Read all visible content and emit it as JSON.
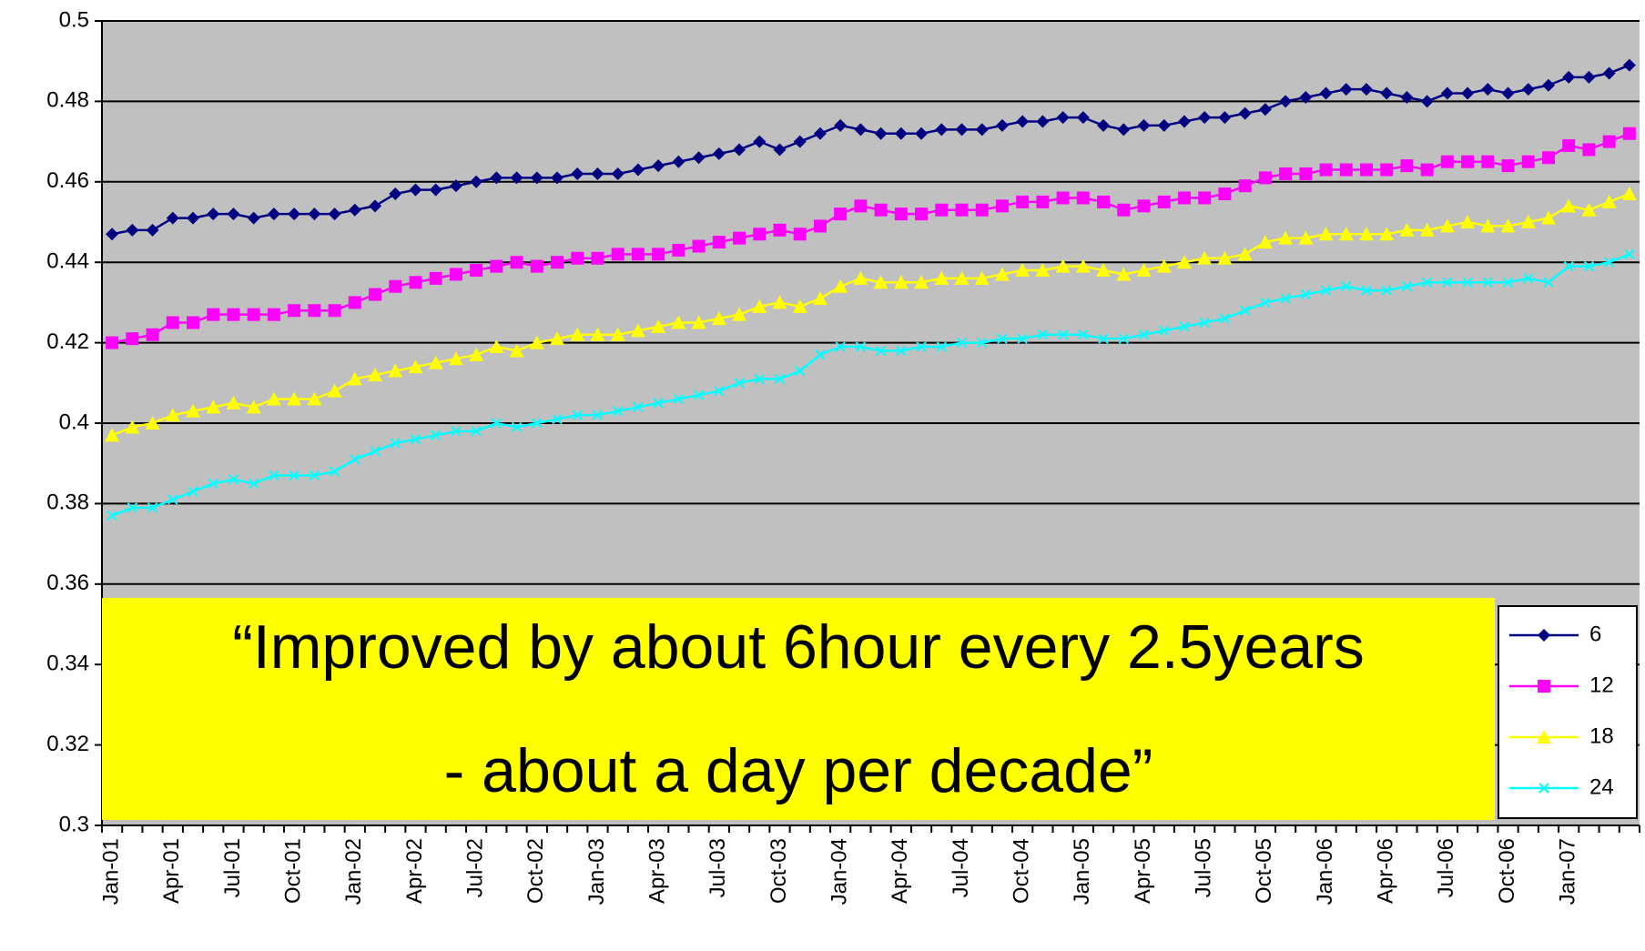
{
  "chart_data": {
    "type": "line",
    "categories": [
      "Jan-01",
      null,
      null,
      "Apr-01",
      null,
      null,
      "Jul-01",
      null,
      null,
      "Oct-01",
      null,
      null,
      "Jan-02",
      null,
      null,
      "Apr-02",
      null,
      null,
      "Jul-02",
      null,
      null,
      "Oct-02",
      null,
      null,
      "Jan-03",
      null,
      null,
      "Apr-03",
      null,
      null,
      "Jul-03",
      null,
      null,
      "Oct-03",
      null,
      null,
      "Jan-04",
      null,
      null,
      "Apr-04",
      null,
      null,
      "Jul-04",
      null,
      null,
      "Oct-04",
      null,
      null,
      "Jan-05",
      null,
      null,
      "Apr-05",
      null,
      null,
      "Jul-05",
      null,
      null,
      "Oct-05",
      null,
      null,
      "Jan-06",
      null,
      null,
      "Apr-06",
      null,
      null,
      "Jul-06",
      null,
      null,
      "Oct-06",
      null,
      null,
      "Jan-07",
      null,
      null,
      null
    ],
    "series": [
      {
        "name": "6",
        "color": "#000080",
        "marker": "diamond",
        "values": [
          0.447,
          0.448,
          0.448,
          0.451,
          0.451,
          0.452,
          0.452,
          0.451,
          0.452,
          0.452,
          0.452,
          0.452,
          0.453,
          0.454,
          0.457,
          0.458,
          0.458,
          0.459,
          0.46,
          0.461,
          0.461,
          0.461,
          0.461,
          0.462,
          0.462,
          0.462,
          0.463,
          0.464,
          0.465,
          0.466,
          0.467,
          0.468,
          0.47,
          0.468,
          0.47,
          0.472,
          0.474,
          0.473,
          0.472,
          0.472,
          0.472,
          0.473,
          0.473,
          0.473,
          0.474,
          0.475,
          0.475,
          0.476,
          0.476,
          0.474,
          0.473,
          0.474,
          0.474,
          0.475,
          0.476,
          0.476,
          0.477,
          0.478,
          0.48,
          0.481,
          0.482,
          0.483,
          0.483,
          0.482,
          0.481,
          0.48,
          0.482,
          0.482,
          0.483,
          0.482,
          0.483,
          0.484,
          0.486,
          0.486,
          0.487,
          0.489
        ]
      },
      {
        "name": "12",
        "color": "#FF00FF",
        "marker": "square",
        "values": [
          0.42,
          0.421,
          0.422,
          0.425,
          0.425,
          0.427,
          0.427,
          0.427,
          0.427,
          0.428,
          0.428,
          0.428,
          0.43,
          0.432,
          0.434,
          0.435,
          0.436,
          0.437,
          0.438,
          0.439,
          0.44,
          0.439,
          0.44,
          0.441,
          0.441,
          0.442,
          0.442,
          0.442,
          0.443,
          0.444,
          0.445,
          0.446,
          0.447,
          0.448,
          0.447,
          0.449,
          0.452,
          0.454,
          0.453,
          0.452,
          0.452,
          0.453,
          0.453,
          0.453,
          0.454,
          0.455,
          0.455,
          0.456,
          0.456,
          0.455,
          0.453,
          0.454,
          0.455,
          0.456,
          0.456,
          0.457,
          0.459,
          0.461,
          0.462,
          0.462,
          0.463,
          0.463,
          0.463,
          0.463,
          0.464,
          0.463,
          0.465,
          0.465,
          0.465,
          0.464,
          0.465,
          0.466,
          0.469,
          0.468,
          0.47,
          0.472
        ]
      },
      {
        "name": "18",
        "color": "#FFFF00",
        "marker": "triangle",
        "values": [
          0.397,
          0.399,
          0.4,
          0.402,
          0.403,
          0.404,
          0.405,
          0.404,
          0.406,
          0.406,
          0.406,
          0.408,
          0.411,
          0.412,
          0.413,
          0.414,
          0.415,
          0.416,
          0.417,
          0.419,
          0.418,
          0.42,
          0.421,
          0.422,
          0.422,
          0.422,
          0.423,
          0.424,
          0.425,
          0.425,
          0.426,
          0.427,
          0.429,
          0.43,
          0.429,
          0.431,
          0.434,
          0.436,
          0.435,
          0.435,
          0.435,
          0.436,
          0.436,
          0.436,
          0.437,
          0.438,
          0.438,
          0.439,
          0.439,
          0.438,
          0.437,
          0.438,
          0.439,
          0.44,
          0.441,
          0.441,
          0.442,
          0.445,
          0.446,
          0.446,
          0.447,
          0.447,
          0.447,
          0.447,
          0.448,
          0.448,
          0.449,
          0.45,
          0.449,
          0.449,
          0.45,
          0.451,
          0.454,
          0.453,
          0.455,
          0.457
        ]
      },
      {
        "name": "24",
        "color": "#00FFFF",
        "marker": "x",
        "values": [
          0.377,
          0.379,
          0.379,
          0.381,
          0.383,
          0.385,
          0.386,
          0.385,
          0.387,
          0.387,
          0.387,
          0.388,
          0.391,
          0.393,
          0.395,
          0.396,
          0.397,
          0.398,
          0.398,
          0.4,
          0.399,
          0.4,
          0.401,
          0.402,
          0.402,
          0.403,
          0.404,
          0.405,
          0.406,
          0.407,
          0.408,
          0.41,
          0.411,
          0.411,
          0.413,
          0.417,
          0.419,
          0.419,
          0.418,
          0.418,
          0.419,
          0.419,
          0.42,
          0.42,
          0.421,
          0.421,
          0.422,
          0.422,
          0.422,
          0.421,
          0.421,
          0.422,
          0.423,
          0.424,
          0.425,
          0.426,
          0.428,
          0.43,
          0.431,
          0.432,
          0.433,
          0.434,
          0.433,
          0.433,
          0.434,
          0.435,
          0.435,
          0.435,
          0.435,
          0.435,
          0.436,
          0.435,
          0.439,
          0.439,
          0.44,
          0.442
        ]
      }
    ],
    "ylim": [
      0.3,
      0.5
    ],
    "yticks": [
      0.3,
      0.32,
      0.34,
      0.36,
      0.38,
      0.4,
      0.42,
      0.44,
      0.46,
      0.48,
      0.5
    ],
    "grid": true,
    "plot_background": "#C0C0C0",
    "legend": "bottom-right",
    "annotations": [
      "“Improved by about 6hour every 2.5years",
      "- about a day per decade”"
    ],
    "annotation_color": "#FFFF00"
  }
}
